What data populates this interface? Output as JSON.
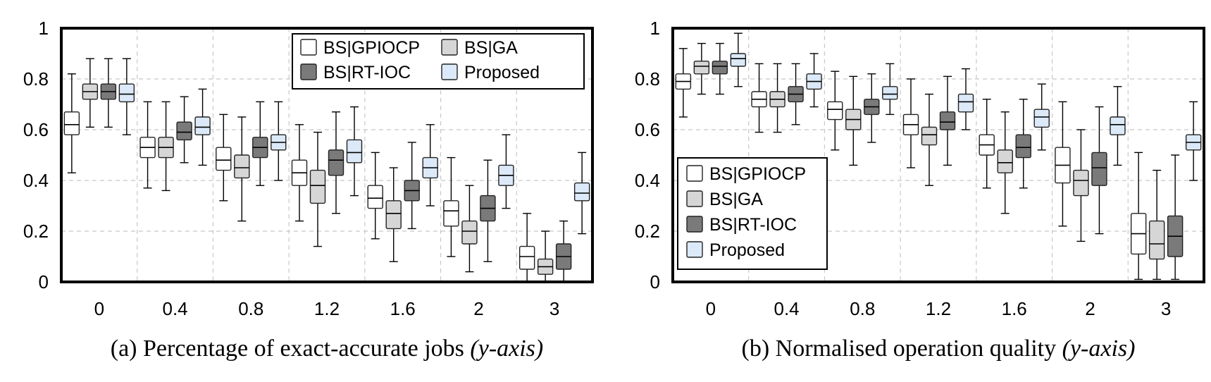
{
  "series_names": [
    "BS|GPIOCP",
    "BS|GA",
    "BS|RT-IOC",
    "Proposed"
  ],
  "series_colors": [
    "#ffffff",
    "#d6d6d6",
    "#7a7a7a",
    "#dbe9f8"
  ],
  "chart_data": [
    {
      "type": "boxplot",
      "caption_main": "(a) Percentage of exact-accurate jobs ",
      "caption_italic": "(y-axis)",
      "categories": [
        "0",
        "0.4",
        "0.8",
        "1.2",
        "1.6",
        "2",
        "3"
      ],
      "ylim": [
        0,
        1
      ],
      "yticks": [
        "0",
        "0.2",
        "0.4",
        "0.6",
        "0.8",
        "1"
      ],
      "legend_position": "top-right",
      "grid": true,
      "series": [
        {
          "name": "BS|GPIOCP",
          "boxes": [
            {
              "min": 0.43,
              "q1": 0.58,
              "median": 0.62,
              "q3": 0.67,
              "max": 0.82
            },
            {
              "min": 0.37,
              "q1": 0.49,
              "median": 0.53,
              "q3": 0.57,
              "max": 0.71
            },
            {
              "min": 0.32,
              "q1": 0.44,
              "median": 0.48,
              "q3": 0.53,
              "max": 0.66
            },
            {
              "min": 0.24,
              "q1": 0.38,
              "median": 0.43,
              "q3": 0.48,
              "max": 0.62
            },
            {
              "min": 0.17,
              "q1": 0.29,
              "median": 0.33,
              "q3": 0.38,
              "max": 0.51
            },
            {
              "min": 0.1,
              "q1": 0.22,
              "median": 0.28,
              "q3": 0.32,
              "max": 0.49
            },
            {
              "min": 0.0,
              "q1": 0.05,
              "median": 0.1,
              "q3": 0.14,
              "max": 0.27
            }
          ]
        },
        {
          "name": "BS|GA",
          "boxes": [
            {
              "min": 0.61,
              "q1": 0.72,
              "median": 0.75,
              "q3": 0.78,
              "max": 0.88
            },
            {
              "min": 0.36,
              "q1": 0.49,
              "median": 0.53,
              "q3": 0.57,
              "max": 0.71
            },
            {
              "min": 0.24,
              "q1": 0.41,
              "median": 0.45,
              "q3": 0.5,
              "max": 0.65
            },
            {
              "min": 0.14,
              "q1": 0.31,
              "median": 0.38,
              "q3": 0.44,
              "max": 0.59
            },
            {
              "min": 0.08,
              "q1": 0.21,
              "median": 0.27,
              "q3": 0.32,
              "max": 0.45
            },
            {
              "min": 0.04,
              "q1": 0.15,
              "median": 0.2,
              "q3": 0.24,
              "max": 0.38
            },
            {
              "min": 0.0,
              "q1": 0.03,
              "median": 0.06,
              "q3": 0.09,
              "max": 0.2
            }
          ]
        },
        {
          "name": "BS|RT-IOC",
          "boxes": [
            {
              "min": 0.61,
              "q1": 0.72,
              "median": 0.75,
              "q3": 0.78,
              "max": 0.88
            },
            {
              "min": 0.47,
              "q1": 0.56,
              "median": 0.59,
              "q3": 0.63,
              "max": 0.73
            },
            {
              "min": 0.38,
              "q1": 0.49,
              "median": 0.53,
              "q3": 0.57,
              "max": 0.71
            },
            {
              "min": 0.27,
              "q1": 0.42,
              "median": 0.48,
              "q3": 0.52,
              "max": 0.67
            },
            {
              "min": 0.21,
              "q1": 0.32,
              "median": 0.36,
              "q3": 0.4,
              "max": 0.55
            },
            {
              "min": 0.08,
              "q1": 0.24,
              "median": 0.29,
              "q3": 0.34,
              "max": 0.48
            },
            {
              "min": 0.0,
              "q1": 0.05,
              "median": 0.1,
              "q3": 0.15,
              "max": 0.24
            }
          ]
        },
        {
          "name": "Proposed",
          "boxes": [
            {
              "min": 0.58,
              "q1": 0.71,
              "median": 0.74,
              "q3": 0.78,
              "max": 0.88
            },
            {
              "min": 0.46,
              "q1": 0.58,
              "median": 0.61,
              "q3": 0.65,
              "max": 0.76
            },
            {
              "min": 0.4,
              "q1": 0.52,
              "median": 0.55,
              "q3": 0.58,
              "max": 0.71
            },
            {
              "min": 0.34,
              "q1": 0.47,
              "median": 0.51,
              "q3": 0.56,
              "max": 0.69
            },
            {
              "min": 0.3,
              "q1": 0.41,
              "median": 0.45,
              "q3": 0.49,
              "max": 0.62
            },
            {
              "min": 0.29,
              "q1": 0.38,
              "median": 0.42,
              "q3": 0.46,
              "max": 0.58
            },
            {
              "min": 0.19,
              "q1": 0.32,
              "median": 0.35,
              "q3": 0.39,
              "max": 0.51
            }
          ]
        }
      ]
    },
    {
      "type": "boxplot",
      "caption_main": "(b) Normalised operation quality ",
      "caption_italic": "(y-axis)",
      "categories": [
        "0",
        "0.4",
        "0.8",
        "1.2",
        "1.6",
        "2",
        "3"
      ],
      "ylim": [
        0,
        1
      ],
      "yticks": [
        "0",
        "0.2",
        "0.4",
        "0.6",
        "0.8",
        "1"
      ],
      "legend_position": "bottom-left",
      "grid": true,
      "series": [
        {
          "name": "BS|GPIOCP",
          "boxes": [
            {
              "min": 0.65,
              "q1": 0.76,
              "median": 0.79,
              "q3": 0.82,
              "max": 0.92
            },
            {
              "min": 0.59,
              "q1": 0.69,
              "median": 0.72,
              "q3": 0.75,
              "max": 0.86
            },
            {
              "min": 0.52,
              "q1": 0.64,
              "median": 0.68,
              "q3": 0.71,
              "max": 0.83
            },
            {
              "min": 0.45,
              "q1": 0.58,
              "median": 0.62,
              "q3": 0.66,
              "max": 0.8
            },
            {
              "min": 0.37,
              "q1": 0.5,
              "median": 0.54,
              "q3": 0.58,
              "max": 0.72
            },
            {
              "min": 0.22,
              "q1": 0.39,
              "median": 0.46,
              "q3": 0.53,
              "max": 0.71
            },
            {
              "min": 0.01,
              "q1": 0.11,
              "median": 0.19,
              "q3": 0.27,
              "max": 0.51
            }
          ]
        },
        {
          "name": "BS|GA",
          "boxes": [
            {
              "min": 0.74,
              "q1": 0.82,
              "median": 0.85,
              "q3": 0.87,
              "max": 0.94
            },
            {
              "min": 0.59,
              "q1": 0.69,
              "median": 0.72,
              "q3": 0.75,
              "max": 0.86
            },
            {
              "min": 0.46,
              "q1": 0.6,
              "median": 0.64,
              "q3": 0.68,
              "max": 0.81
            },
            {
              "min": 0.38,
              "q1": 0.54,
              "median": 0.58,
              "q3": 0.61,
              "max": 0.74
            },
            {
              "min": 0.27,
              "q1": 0.43,
              "median": 0.47,
              "q3": 0.52,
              "max": 0.67
            },
            {
              "min": 0.16,
              "q1": 0.34,
              "median": 0.4,
              "q3": 0.44,
              "max": 0.6
            },
            {
              "min": 0.01,
              "q1": 0.09,
              "median": 0.15,
              "q3": 0.24,
              "max": 0.44
            }
          ]
        },
        {
          "name": "BS|RT-IOC",
          "boxes": [
            {
              "min": 0.74,
              "q1": 0.82,
              "median": 0.85,
              "q3": 0.87,
              "max": 0.94
            },
            {
              "min": 0.62,
              "q1": 0.71,
              "median": 0.74,
              "q3": 0.77,
              "max": 0.86
            },
            {
              "min": 0.55,
              "q1": 0.66,
              "median": 0.69,
              "q3": 0.72,
              "max": 0.82
            },
            {
              "min": 0.46,
              "q1": 0.6,
              "median": 0.63,
              "q3": 0.67,
              "max": 0.81
            },
            {
              "min": 0.37,
              "q1": 0.49,
              "median": 0.53,
              "q3": 0.58,
              "max": 0.72
            },
            {
              "min": 0.19,
              "q1": 0.38,
              "median": 0.45,
              "q3": 0.51,
              "max": 0.69
            },
            {
              "min": 0.01,
              "q1": 0.1,
              "median": 0.18,
              "q3": 0.26,
              "max": 0.5
            }
          ]
        },
        {
          "name": "Proposed",
          "boxes": [
            {
              "min": 0.77,
              "q1": 0.85,
              "median": 0.88,
              "q3": 0.9,
              "max": 0.98
            },
            {
              "min": 0.69,
              "q1": 0.76,
              "median": 0.79,
              "q3": 0.82,
              "max": 0.9
            },
            {
              "min": 0.66,
              "q1": 0.72,
              "median": 0.74,
              "q3": 0.77,
              "max": 0.86
            },
            {
              "min": 0.6,
              "q1": 0.67,
              "median": 0.71,
              "q3": 0.74,
              "max": 0.84
            },
            {
              "min": 0.52,
              "q1": 0.61,
              "median": 0.65,
              "q3": 0.68,
              "max": 0.78
            },
            {
              "min": 0.46,
              "q1": 0.58,
              "median": 0.62,
              "q3": 0.65,
              "max": 0.77
            },
            {
              "min": 0.4,
              "q1": 0.52,
              "median": 0.55,
              "q3": 0.58,
              "max": 0.71
            }
          ]
        }
      ]
    }
  ]
}
